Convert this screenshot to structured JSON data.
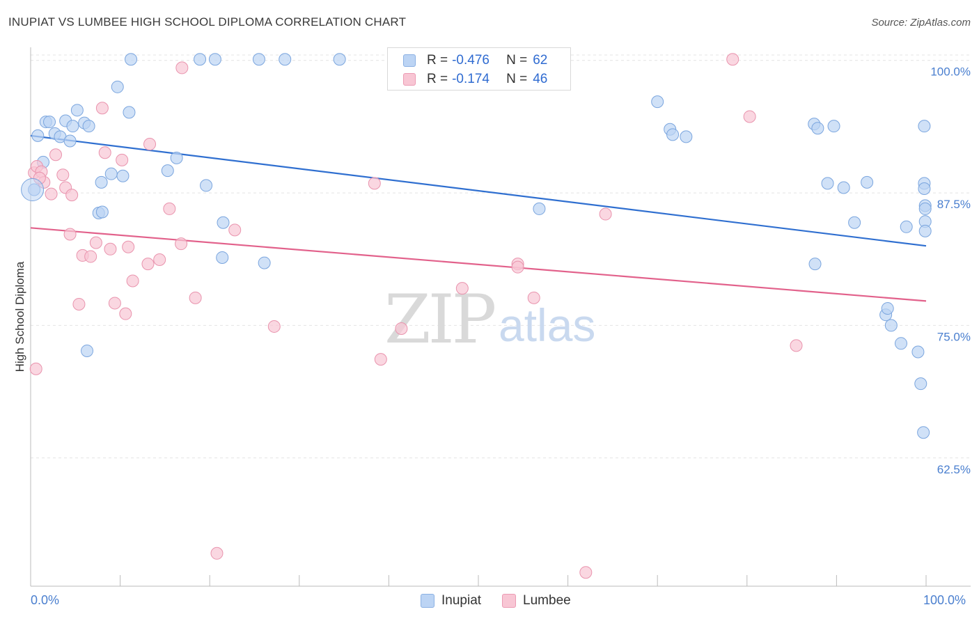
{
  "header": {
    "title": "INUPIAT VS LUMBEE HIGH SCHOOL DIPLOMA CORRELATION CHART",
    "source": "Source: ZipAtlas.com"
  },
  "watermark": {
    "zip": "ZIP",
    "atlas": "atlas"
  },
  "legend": {
    "rows": [
      {
        "r_label": "R =",
        "r_value": "-0.476",
        "n_label": "N =",
        "n_value": "62",
        "color": "#4a84d8"
      },
      {
        "r_label": "R =",
        "r_value": "-0.174",
        "n_label": "N =",
        "n_value": "46",
        "color": "#e86e95"
      }
    ]
  },
  "bottom_legend": {
    "inupiat": "Inupiat",
    "lumbee": "Lumbee"
  },
  "x_axis_labels": {
    "left": "0.0%",
    "right": "100.0%"
  },
  "chart_data": {
    "type": "scatter",
    "title": "INUPIAT VS LUMBEE HIGH SCHOOL DIPLOMA CORRELATION CHART",
    "xlabel": "",
    "ylabel": "High School Diploma",
    "xlim": [
      0,
      100
    ],
    "ylim": [
      50.4,
      101.1
    ],
    "y_ticks": [
      {
        "value": 100.0,
        "label": "100.0%"
      },
      {
        "value": 87.5,
        "label": "87.5%"
      },
      {
        "value": 75.0,
        "label": "75.0%"
      },
      {
        "value": 62.5,
        "label": "62.5%"
      }
    ],
    "x_ticks": [
      0,
      10,
      20,
      30,
      40,
      50,
      60,
      70,
      80,
      90,
      100
    ],
    "series": [
      {
        "name": "Inupiat",
        "fill": "#bcd4f4",
        "stroke": "#7aa5de",
        "trend": {
          "x": [
            0,
            100
          ],
          "y": [
            92.9,
            82.5
          ],
          "color": "#2f6fd0"
        },
        "points": [
          [
            0.4,
            87.8
          ],
          [
            0.8,
            92.9
          ],
          [
            1.4,
            90.4
          ],
          [
            1.7,
            94.2
          ],
          [
            2.1,
            94.2
          ],
          [
            2.7,
            93.1
          ],
          [
            3.3,
            92.8
          ],
          [
            3.9,
            94.3
          ],
          [
            4.4,
            92.4
          ],
          [
            4.7,
            93.8
          ],
          [
            5.2,
            95.3
          ],
          [
            6.0,
            94.1
          ],
          [
            6.5,
            93.8
          ],
          [
            6.3,
            72.6
          ],
          [
            7.6,
            85.6
          ],
          [
            8.0,
            85.7
          ],
          [
            7.9,
            88.5
          ],
          [
            9.0,
            89.3
          ],
          [
            9.7,
            97.5
          ],
          [
            10.3,
            89.1
          ],
          [
            11.0,
            95.1
          ],
          [
            11.2,
            100.1
          ],
          [
            15.3,
            89.6
          ],
          [
            16.3,
            90.8
          ],
          [
            18.9,
            100.1
          ],
          [
            20.6,
            100.1
          ],
          [
            19.6,
            88.2
          ],
          [
            21.5,
            84.7
          ],
          [
            21.4,
            81.4
          ],
          [
            25.5,
            100.1
          ],
          [
            26.1,
            80.9
          ],
          [
            28.4,
            100.1
          ],
          [
            34.5,
            100.1
          ],
          [
            47.3,
            100.1
          ],
          [
            56.8,
            86.0
          ],
          [
            70.0,
            96.1
          ],
          [
            71.4,
            93.5
          ],
          [
            71.7,
            93.0
          ],
          [
            73.2,
            92.8
          ],
          [
            87.5,
            94.0
          ],
          [
            87.9,
            93.6
          ],
          [
            87.6,
            80.8
          ],
          [
            89.7,
            93.8
          ],
          [
            89.0,
            88.4
          ],
          [
            90.8,
            88.0
          ],
          [
            92.0,
            84.7
          ],
          [
            93.4,
            88.5
          ],
          [
            95.5,
            76.0
          ],
          [
            96.1,
            75.0
          ],
          [
            95.7,
            76.6
          ],
          [
            97.8,
            84.3
          ],
          [
            97.2,
            73.3
          ],
          [
            99.1,
            72.5
          ],
          [
            99.4,
            69.5
          ],
          [
            99.7,
            64.9
          ],
          [
            99.8,
            93.8
          ],
          [
            99.8,
            88.4
          ],
          [
            99.8,
            87.9
          ],
          [
            99.9,
            86.3
          ],
          [
            99.9,
            86.0
          ],
          [
            99.9,
            84.8
          ],
          [
            99.9,
            83.9
          ]
        ]
      },
      {
        "name": "Lumbee",
        "fill": "#f8c6d4",
        "stroke": "#e993ad",
        "trend": {
          "x": [
            0,
            100
          ],
          "y": [
            84.2,
            77.3
          ],
          "color": "#e2618b"
        },
        "points": [
          [
            0.4,
            89.4
          ],
          [
            0.7,
            90.0
          ],
          [
            1.2,
            89.5
          ],
          [
            1.5,
            88.5
          ],
          [
            2.3,
            87.4
          ],
          [
            2.8,
            91.1
          ],
          [
            3.6,
            89.2
          ],
          [
            3.9,
            88.0
          ],
          [
            4.4,
            83.6
          ],
          [
            4.6,
            87.3
          ],
          [
            5.4,
            77.0
          ],
          [
            5.8,
            81.6
          ],
          [
            6.7,
            81.5
          ],
          [
            7.3,
            82.8
          ],
          [
            8.0,
            95.5
          ],
          [
            8.3,
            91.3
          ],
          [
            8.9,
            82.2
          ],
          [
            9.4,
            77.1
          ],
          [
            10.2,
            90.6
          ],
          [
            10.6,
            76.1
          ],
          [
            10.9,
            82.4
          ],
          [
            11.4,
            79.2
          ],
          [
            13.1,
            80.8
          ],
          [
            13.3,
            92.1
          ],
          [
            14.4,
            81.2
          ],
          [
            15.5,
            86.0
          ],
          [
            16.8,
            82.7
          ],
          [
            16.9,
            99.3
          ],
          [
            18.4,
            77.6
          ],
          [
            20.8,
            53.5
          ],
          [
            22.8,
            84.0
          ],
          [
            27.2,
            74.9
          ],
          [
            38.4,
            88.4
          ],
          [
            39.1,
            71.8
          ],
          [
            41.4,
            74.7
          ],
          [
            48.2,
            78.5
          ],
          [
            54.4,
            80.8
          ],
          [
            54.4,
            80.5
          ],
          [
            56.2,
            77.6
          ],
          [
            64.2,
            85.5
          ],
          [
            78.4,
            100.1
          ],
          [
            80.3,
            94.7
          ],
          [
            85.5,
            73.1
          ],
          [
            62.0,
            51.7
          ],
          [
            0.6,
            70.9
          ],
          [
            1.0,
            88.9
          ]
        ]
      }
    ]
  }
}
